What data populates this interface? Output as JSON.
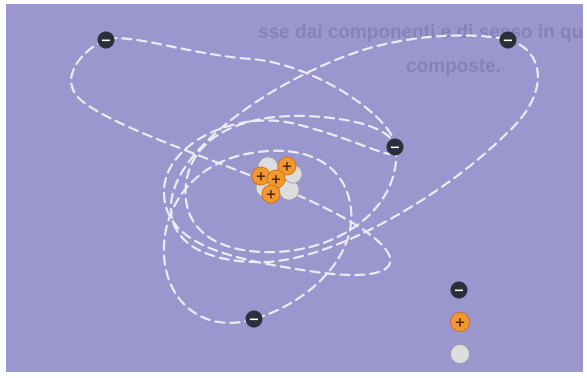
{
  "diagram": {
    "background_color": "#9a97cf",
    "orbit_color": "#eeeaf4",
    "electron": {
      "sign": "−",
      "fill": "#2c2f3b",
      "icon": "electron-icon"
    },
    "proton": {
      "sign": "+",
      "fill": "#f2982f",
      "icon": "proton-icon"
    },
    "neutron": {
      "fill": "#dedddd",
      "icon": "neutron-icon"
    },
    "faded_background_text": [
      "sse dai componenti e di sesso in quali",
      "composte."
    ]
  },
  "legend": {
    "items": [
      {
        "particle": "electron"
      },
      {
        "particle": "proton"
      },
      {
        "particle": "neutron"
      }
    ]
  }
}
